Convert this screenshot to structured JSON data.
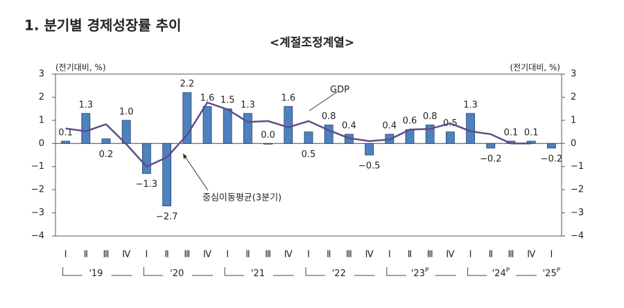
{
  "chart_data": {
    "type": "bar-line",
    "title": "1. 분기별 경제성장률 추이",
    "subtitle": "<계절조정계열>",
    "y_label": "(전기대비, %)",
    "y2_label": "(전기대비, %)",
    "annotations": [
      "GDP",
      "중심이동평균(3분기)"
    ],
    "categories": [
      "Ⅰ",
      "Ⅱ",
      "Ⅲ",
      "Ⅳ",
      "Ⅰ",
      "Ⅱ",
      "Ⅲ",
      "Ⅳ",
      "Ⅰ",
      "Ⅱ",
      "Ⅲ",
      "Ⅳ",
      "Ⅰ",
      "Ⅱ",
      "Ⅲ",
      "Ⅳ",
      "Ⅰ",
      "Ⅱ",
      "Ⅲ",
      "Ⅳ",
      "Ⅰ",
      "Ⅱ",
      "Ⅲ",
      "Ⅳ",
      "Ⅰ"
    ],
    "x_groups": [
      {
        "label": "'19"
      },
      {
        "label": "'20"
      },
      {
        "label": "'21"
      },
      {
        "label": "'22"
      },
      {
        "label": "'23",
        "mark": "P"
      },
      {
        "label": "'24",
        "mark": "P"
      },
      {
        "label": "'25",
        "mark": "P"
      }
    ],
    "series": [
      {
        "name": "GDP",
        "kind": "bar",
        "color": "#4f81bd",
        "values": [
          0.1,
          1.3,
          0.2,
          1.0,
          -1.3,
          -2.7,
          2.2,
          1.6,
          1.5,
          1.3,
          0.0,
          1.6,
          0.5,
          0.8,
          0.4,
          -0.5,
          0.4,
          0.6,
          0.8,
          0.5,
          1.3,
          -0.2,
          0.1,
          0.1,
          -0.2
        ],
        "value_labels": [
          "0.1",
          "1.3",
          "0.2",
          "1.0",
          "−1.3",
          "−2.7",
          "2.2",
          "1.6",
          "1.5",
          "1.3",
          "0.0",
          "1.6",
          "0.5",
          "0.8",
          "0.4",
          "−0.5",
          "0.4",
          "0.6",
          "0.8",
          "0.5",
          "1.3",
          "−0.2",
          "0.1",
          "0.1",
          "−0.2"
        ]
      },
      {
        "name": "중심이동평균(3분기)",
        "kind": "line",
        "color": "#5e4b8b",
        "values": [
          0.65,
          0.53,
          0.83,
          -0.03,
          -1.0,
          -0.6,
          0.37,
          1.77,
          1.47,
          0.93,
          0.97,
          0.7,
          0.97,
          0.57,
          0.23,
          0.1,
          0.17,
          0.6,
          0.63,
          0.87,
          0.53,
          0.4,
          0.0,
          0.0,
          null
        ]
      }
    ],
    "ylim": [
      -4,
      3
    ],
    "yticks": [
      {
        "value": -4,
        "label": "−4"
      },
      {
        "value": -3,
        "label": "−3"
      },
      {
        "value": -2,
        "label": "−2"
      },
      {
        "value": -1,
        "label": "−1"
      },
      0,
      1,
      2,
      3
    ],
    "y2lim": [
      -4,
      3
    ],
    "y2ticks": [
      {
        "value": -4,
        "label": "−4"
      },
      {
        "value": -3,
        "label": "−3"
      },
      {
        "value": -2,
        "label": "−2"
      },
      {
        "value": -1,
        "label": "−1"
      },
      0,
      1,
      2,
      3
    ]
  }
}
